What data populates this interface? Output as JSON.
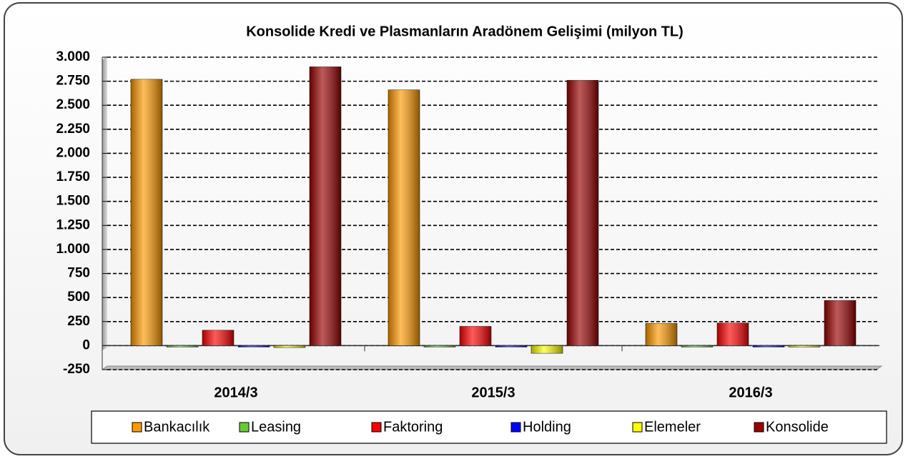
{
  "chart_data": {
    "type": "bar",
    "title": "Konsolide Kredi ve Plasmanların Aradönem Gelişimi (milyon TL)",
    "categories": [
      "2014/3",
      "2015/3",
      "2016/3"
    ],
    "series": [
      {
        "name": "Bankacılık",
        "color": "#ff9900",
        "values": [
          2770,
          2660,
          230
        ]
      },
      {
        "name": "Leasing",
        "color": "#66cc33",
        "values": [
          0,
          0,
          0
        ]
      },
      {
        "name": "Faktoring",
        "color": "#ff0000",
        "values": [
          160,
          200,
          235
        ]
      },
      {
        "name": "Holding",
        "color": "#0000ff",
        "values": [
          0,
          0,
          0
        ]
      },
      {
        "name": "Elemeler",
        "color": "#ffff00",
        "values": [
          -20,
          -80,
          0
        ]
      },
      {
        "name": "Konsolide",
        "color": "#990000",
        "values": [
          2900,
          2760,
          470
        ]
      }
    ],
    "ylim": [
      -250,
      3000
    ],
    "yticks": [
      -250,
      0,
      250,
      500,
      750,
      {
        "value": 1000,
        "label": "1.000"
      },
      {
        "value": 1250,
        "label": "1.250"
      },
      {
        "value": 1500,
        "label": "1.500"
      },
      {
        "value": 1750,
        "label": "1.750"
      },
      {
        "value": 2000,
        "label": "2.000"
      },
      {
        "value": 2250,
        "label": "2.250"
      },
      {
        "value": 2500,
        "label": "2.500"
      },
      {
        "value": 2750,
        "label": "2.750"
      },
      {
        "value": 3000,
        "label": "3.000"
      }
    ],
    "grid": true,
    "legend": "bottom"
  }
}
